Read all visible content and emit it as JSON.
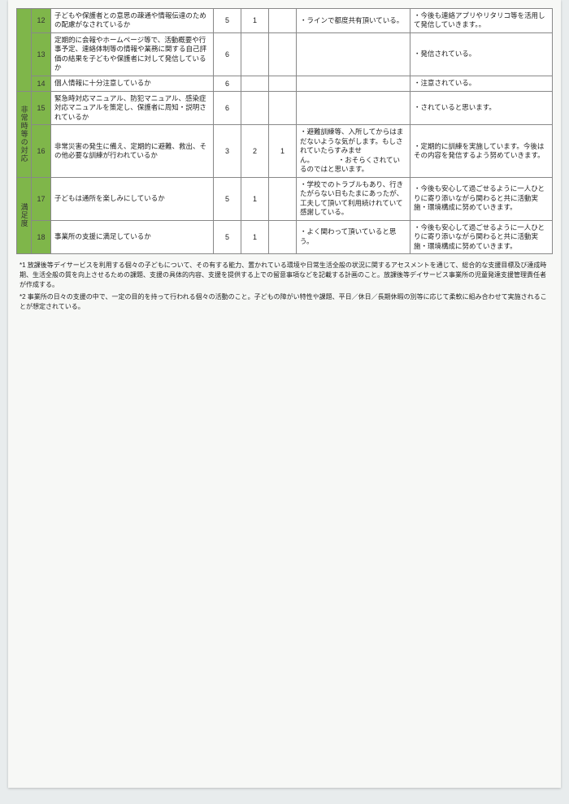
{
  "columns": {
    "cat_w": 18,
    "num_w": 24,
    "q_w": 200,
    "v1_w": 34,
    "v2_w": 34,
    "v3_w": 34,
    "c1_w": 140,
    "c2_w": 160
  },
  "colors": {
    "category_bg": "#7fb64a",
    "border": "#888888",
    "page_bg": "#f7f8f6",
    "body_bg": "#e8eced"
  },
  "categories": [
    {
      "label": "",
      "rows": [
        {
          "num": "12",
          "q": "子どもや保護者との意思の疎通や情報伝達のための配慮がなされているか",
          "v1": "5",
          "v2": "1",
          "v3": "",
          "c1": "・ラインで都度共有頂いている。",
          "c2": "・今後も連絡アプリやリタリコ等を活用して発信していきます。。"
        },
        {
          "num": "13",
          "q": "定期的に会報やホームページ等で、活動概要や行事予定、連絡体制等の情報や業務に関する自己評価の結果を子どもや保護者に対して発信しているか",
          "v1": "6",
          "v2": "",
          "v3": "",
          "c1": "",
          "c2": "・発信されている。"
        },
        {
          "num": "14",
          "q": "個人情報に十分注意しているか",
          "v1": "6",
          "v2": "",
          "v3": "",
          "c1": "",
          "c2": "・注意されている。"
        }
      ]
    },
    {
      "label": "非常時等の対応",
      "rows": [
        {
          "num": "15",
          "q": "緊急時対応マニュアル、防犯マニュアル、感染症対応マニュアルを策定し、保護者に周知・説明されているか",
          "v1": "6",
          "v2": "",
          "v3": "",
          "c1": "",
          "c2": "・されていると思います。"
        },
        {
          "num": "16",
          "q": "非常災害の発生に備え、定期的に避難、救出、その他必要な訓練が行われているか",
          "v1": "3",
          "v2": "2",
          "v3": "1",
          "c1": "・避難訓練等、入所してからはまだないような気がします。もしされていたらすみません。　　　　・おそらくされているのではと思います。",
          "c2": "・定期的に訓練を実施しています。今後はその内容を発信するよう努めていきます。"
        }
      ]
    },
    {
      "label": "満足度",
      "rows": [
        {
          "num": "17",
          "q": "子どもは通所を楽しみにしているか",
          "v1": "5",
          "v2": "1",
          "v3": "",
          "c1": "・学校でのトラブルもあり、行きたがらない日もたまにあったが、工夫して頂いて利用続けれていて感謝している。",
          "c2": "・今後も安心して過ごせるように一人ひとりに寄り添いながら関わると共に活動実施・環境構成に努めていきます。"
        },
        {
          "num": "18",
          "q": "事業所の支援に満足しているか",
          "v1": "5",
          "v2": "1",
          "v3": "",
          "c1": "・よく関わって頂いていると思う。",
          "c2": "・今後も安心して過ごせるように一人ひとりに寄り添いながら関わると共に活動実施・環境構成に努めていきます。"
        }
      ]
    }
  ],
  "footnotes": [
    "*1 放課後等デイサービスを利用する個々の子どもについて、その有する能力、置かれている環境や日常生活全般の状況に関するアセスメントを通じて、総合的な支援目標及び達成時期、生活全般の質を向上させるための課題、支援の具体的内容、支援を提供する上での留意事項などを記載する計画のこと。放課後等デイサービス事業所の児童発達支援管理責任者が作成する。",
    "*2 事業所の日々の支援の中で、一定の目的を持って行われる個々の活動のこと。子どもの障がい特性や課題、平日／休日／長期休暇の別等に応じて柔軟に組み合わせて実施されることが想定されている。"
  ]
}
